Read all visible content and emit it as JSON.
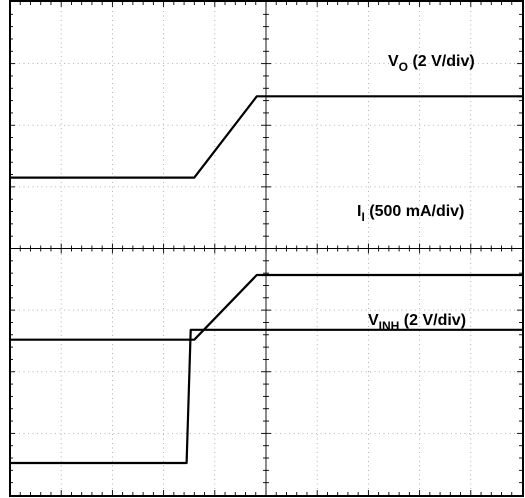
{
  "chart_data": {
    "type": "line",
    "title": "",
    "xlabel": "",
    "ylabel": "",
    "grid": true,
    "x_divisions": 10,
    "y_divisions": 8,
    "x_range_div": [
      0,
      10
    ],
    "y_range_div": [
      0,
      8
    ],
    "series": [
      {
        "name": "VO (2 V/div)",
        "label_main": "V",
        "label_sub": "O",
        "label_rest": " (2 V/div)",
        "points": [
          [
            0,
            5.15
          ],
          [
            3.6,
            5.15
          ],
          [
            4.82,
            6.47
          ],
          [
            10,
            6.47
          ]
        ]
      },
      {
        "name": "II (500 mA/div)",
        "label_main": "I",
        "label_sub": "I",
        "label_rest": " (500 mA/div)",
        "points": [
          [
            0,
            2.52
          ],
          [
            3.6,
            2.52
          ],
          [
            4.82,
            3.57
          ],
          [
            10,
            3.57
          ]
        ]
      },
      {
        "name": "VINH (2 V/div)",
        "label_main": "V",
        "label_sub": "INH",
        "label_rest": " (2 V/div)",
        "points": [
          [
            0,
            0.52
          ],
          [
            3.45,
            0.52
          ],
          [
            3.53,
            2.68
          ],
          [
            10,
            2.68
          ]
        ]
      }
    ]
  }
}
